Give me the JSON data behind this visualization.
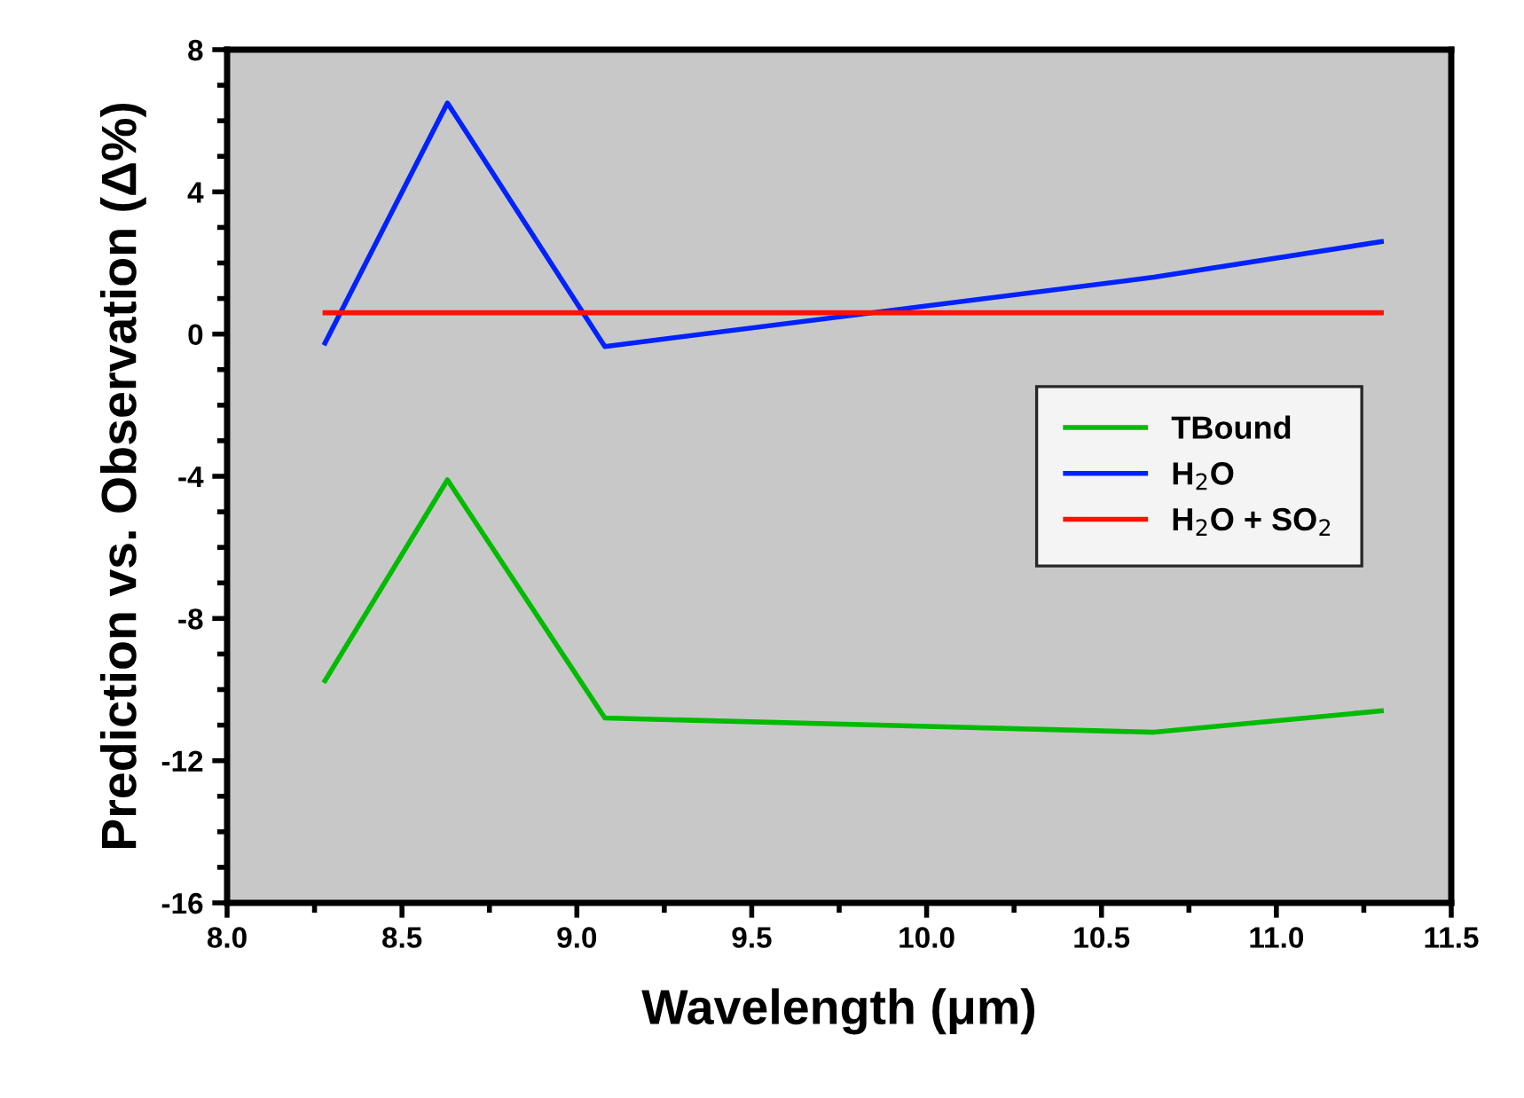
{
  "chart_data": {
    "type": "line",
    "xlabel": "Wavelength (μm)",
    "ylabel": "Prediction vs. Observation (Δ%)",
    "x": [
      8.28,
      8.63,
      9.08,
      10.65,
      11.3
    ],
    "series": [
      {
        "name": "TBound",
        "color": "#00bb00",
        "values": [
          -9.75,
          -4.1,
          -10.8,
          -11.2,
          -10.6
        ]
      },
      {
        "name": "H$_{2}$O",
        "color": "#0022ff",
        "values": [
          -0.25,
          6.5,
          -0.35,
          1.6,
          2.6
        ]
      },
      {
        "name": "H$_{2}$O + SO$_{2}$",
        "color": "#ff1100",
        "values": [
          0.6,
          0.6,
          0.6,
          0.6,
          0.6
        ]
      }
    ],
    "xlim": [
      8.0,
      11.5
    ],
    "xticks": [
      {
        "value": 8.0,
        "label": "8.0"
      },
      {
        "value": 8.5,
        "label": "8.5"
      },
      {
        "value": 9.0,
        "label": "9.0"
      },
      {
        "value": 9.5,
        "label": "9.5"
      },
      {
        "value": 10.0,
        "label": "10.0"
      },
      {
        "value": 10.5,
        "label": "10.5"
      },
      {
        "value": 11.0,
        "label": "11.0"
      },
      {
        "value": 11.5,
        "label": "11.5"
      }
    ],
    "ylim": [
      -16,
      8
    ],
    "yticks": [
      -16,
      -12,
      -8,
      -4,
      0,
      4,
      8
    ],
    "grid": false,
    "legend": "right",
    "marker": "none",
    "line_style": "solid"
  }
}
